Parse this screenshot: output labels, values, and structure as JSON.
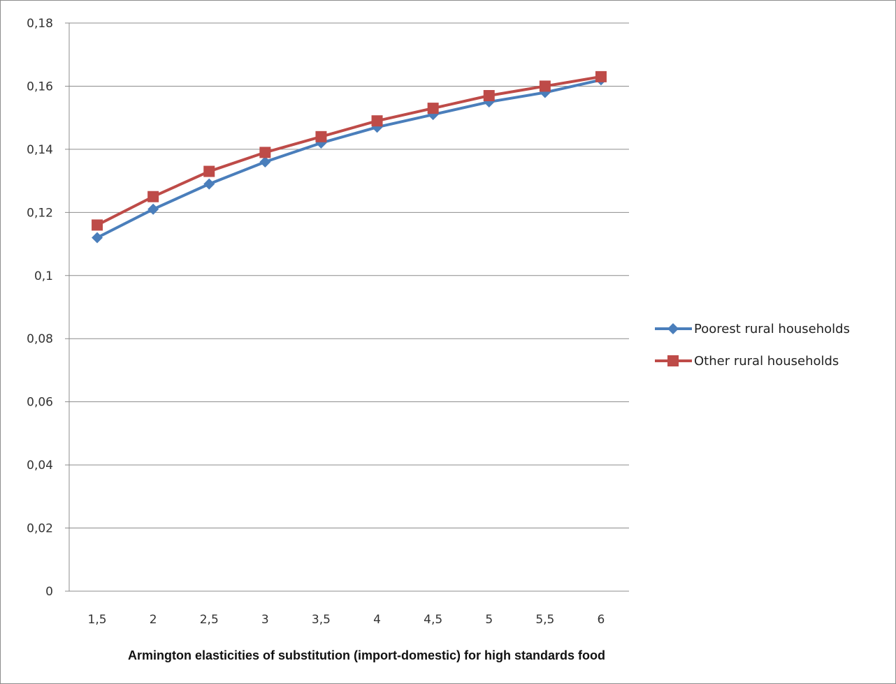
{
  "chart_data": {
    "type": "line",
    "categories": [
      "1,5",
      "2",
      "2,5",
      "3",
      "3,5",
      "4",
      "4,5",
      "5",
      "5,5",
      "6"
    ],
    "series": [
      {
        "name": "Poorest rural households",
        "color": "#4a7ebb",
        "marker": "diamond",
        "values": [
          0.112,
          0.121,
          0.129,
          0.136,
          0.142,
          0.147,
          0.151,
          0.155,
          0.158,
          0.162
        ]
      },
      {
        "name": "Other rural households",
        "color": "#be4b48",
        "marker": "square",
        "values": [
          0.116,
          0.125,
          0.133,
          0.139,
          0.144,
          0.149,
          0.153,
          0.157,
          0.16,
          0.163
        ]
      }
    ],
    "y_ticks": [
      "0",
      "0,02",
      "0,04",
      "0,06",
      "0,08",
      "0,1",
      "0,12",
      "0,14",
      "0,16",
      "0,18"
    ],
    "ylim": [
      0,
      0.18
    ],
    "xlabel": "Armington elasticities of substitution (import-domestic) for high standards food",
    "grid": "horizontal",
    "legend_position": "right"
  }
}
